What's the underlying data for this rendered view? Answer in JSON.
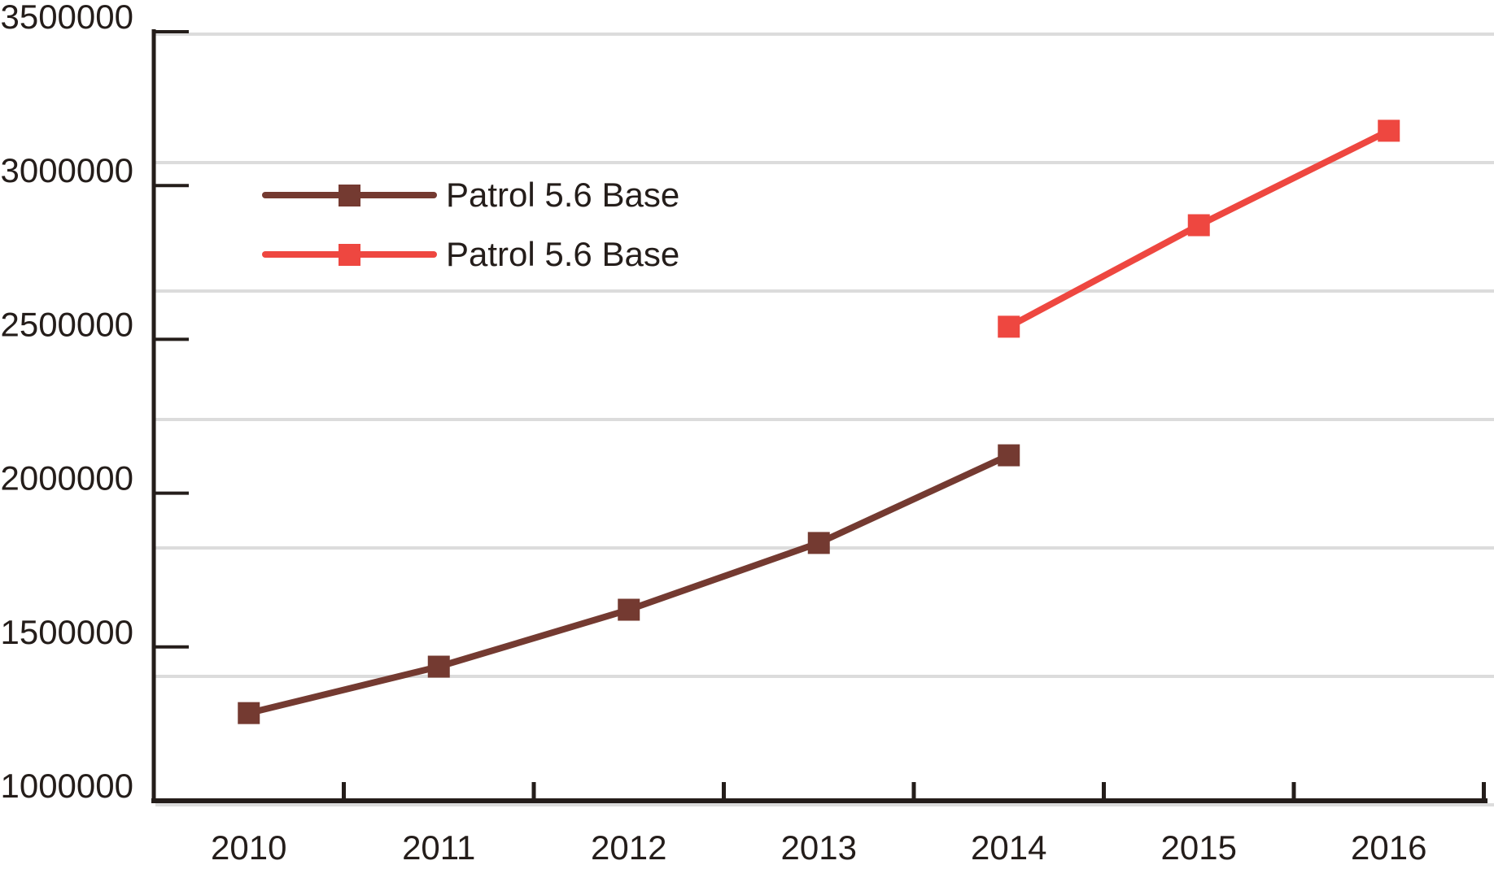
{
  "figure": {
    "background": "#ffffff",
    "axis_color": "#241d1a",
    "text_color": "#241d1a",
    "gridline_color": "#dcdcdc"
  },
  "chart_data": {
    "type": "line",
    "title": "",
    "xlabel": "",
    "ylabel": "",
    "x_categories": [
      "2010",
      "2011",
      "2012",
      "2013",
      "2014",
      "2015",
      "2016"
    ],
    "y_ticks": [
      1000000,
      1500000,
      2000000,
      2500000,
      3000000,
      3500000
    ],
    "y_tick_labels": [
      "1000000",
      "1500000",
      "2000000",
      "2500000",
      "3000000",
      "3500000"
    ],
    "ylim": [
      1000000,
      3500000
    ],
    "grid": "horizontal",
    "gridline_count": 7,
    "legend_position": "upper-left-inside",
    "series": [
      {
        "name": "Patrol 5.6 Base",
        "color": "#743a31",
        "marker": "square",
        "values": [
          1285000,
          1436000,
          1621000,
          1838000,
          2123000,
          null,
          null
        ]
      },
      {
        "name": "Patrol 5.6 Base",
        "color": "#ee4740",
        "marker": "square",
        "values": [
          null,
          null,
          null,
          null,
          2541000,
          2871000,
          3178000
        ]
      }
    ]
  },
  "legend": {
    "entries": [
      {
        "label": "Patrol 5.6 Base",
        "color": "#743a31"
      },
      {
        "label": "Patrol 5.6 Base",
        "color": "#ee4740"
      }
    ]
  }
}
